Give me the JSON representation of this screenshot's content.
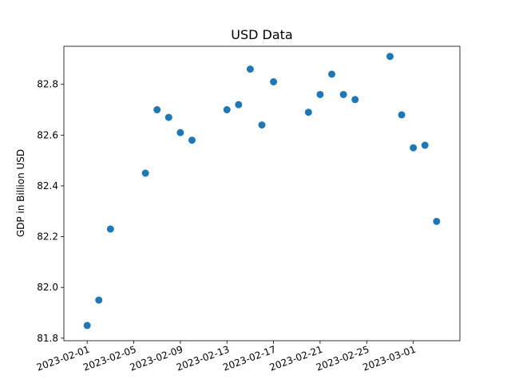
{
  "chart_data": {
    "type": "scatter",
    "title": "USD Data",
    "xlabel": "",
    "ylabel": "GDP in Billion USD",
    "grid": false,
    "color": "#1f77b4",
    "xlim": [
      "2023-01-30",
      "2023-03-05"
    ],
    "ylim": [
      81.79,
      82.95
    ],
    "x_ticks": [
      "2023-02-01",
      "2023-02-05",
      "2023-02-09",
      "2023-02-13",
      "2023-02-17",
      "2023-02-21",
      "2023-02-25",
      "2023-03-01"
    ],
    "y_ticks": [
      81.8,
      82.0,
      82.2,
      82.4,
      82.6,
      82.8
    ],
    "y_tick_labels": [
      "81.8",
      "82.0",
      "82.2",
      "82.4",
      "82.6",
      "82.8"
    ],
    "points": [
      {
        "x": "2023-02-01",
        "y": 81.85
      },
      {
        "x": "2023-02-02",
        "y": 81.95
      },
      {
        "x": "2023-02-03",
        "y": 82.23
      },
      {
        "x": "2023-02-06",
        "y": 82.45
      },
      {
        "x": "2023-02-07",
        "y": 82.7
      },
      {
        "x": "2023-02-08",
        "y": 82.67
      },
      {
        "x": "2023-02-09",
        "y": 82.61
      },
      {
        "x": "2023-02-10",
        "y": 82.58
      },
      {
        "x": "2023-02-13",
        "y": 82.7
      },
      {
        "x": "2023-02-14",
        "y": 82.72
      },
      {
        "x": "2023-02-15",
        "y": 82.86
      },
      {
        "x": "2023-02-16",
        "y": 82.64
      },
      {
        "x": "2023-02-17",
        "y": 82.81
      },
      {
        "x": "2023-02-20",
        "y": 82.69
      },
      {
        "x": "2023-02-21",
        "y": 82.76
      },
      {
        "x": "2023-02-22",
        "y": 82.84
      },
      {
        "x": "2023-02-23",
        "y": 82.76
      },
      {
        "x": "2023-02-24",
        "y": 82.74
      },
      {
        "x": "2023-02-27",
        "y": 82.91
      },
      {
        "x": "2023-02-28",
        "y": 82.68
      },
      {
        "x": "2023-03-01",
        "y": 82.55
      },
      {
        "x": "2023-03-02",
        "y": 82.56
      },
      {
        "x": "2023-03-03",
        "y": 82.26
      }
    ]
  }
}
